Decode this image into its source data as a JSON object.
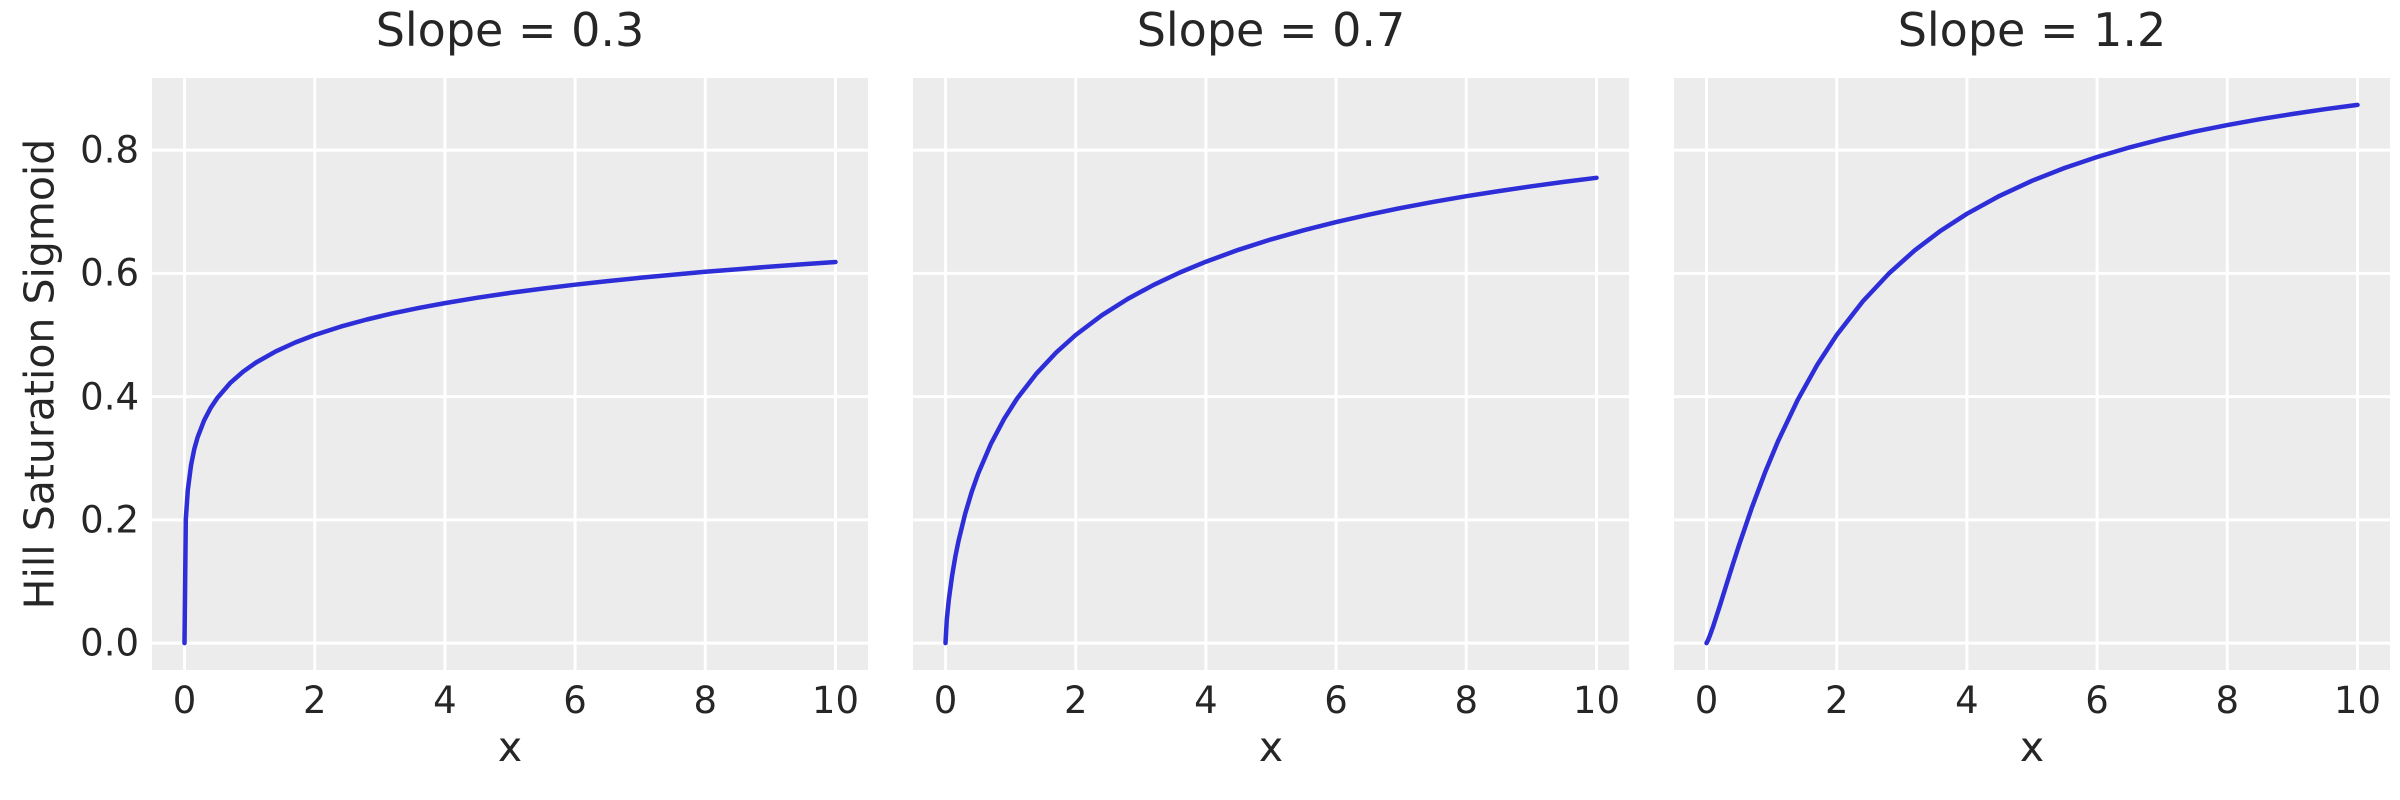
{
  "figure": {
    "background": "#ffffff",
    "axes_background": "#ececec",
    "grid_color": "#ffffff",
    "text_color": "#262626",
    "ylabel": "Hill Saturation Sigmoid"
  },
  "chart_data": [
    {
      "type": "line",
      "title": "Slope = 0.3",
      "xlabel": "x",
      "ylabel": "Hill Saturation Sigmoid",
      "line_color": "#2e2ed8",
      "grid": true,
      "legend": null,
      "xlim": [
        -0.5,
        10.5
      ],
      "ylim": [
        -0.0437,
        0.9171
      ],
      "xticks": [
        0,
        2,
        4,
        6,
        8,
        10
      ],
      "xtick_labels": [
        "0",
        "2",
        "4",
        "6",
        "8",
        "10"
      ],
      "yticks": [
        0,
        0.2,
        0.4,
        0.6,
        0.8
      ],
      "ytick_labels": [
        "0.0",
        "0.2",
        "0.4",
        "0.6",
        "0.8"
      ],
      "show_ytick_labels": true,
      "x": [
        0,
        0.02,
        0.05,
        0.1,
        0.15,
        0.2,
        0.3,
        0.4,
        0.5,
        0.7,
        0.9,
        1.1,
        1.4,
        1.7,
        2,
        2.4,
        2.8,
        3.2,
        3.6,
        4,
        4.5,
        5,
        5.5,
        6,
        6.5,
        7,
        7.5,
        8,
        8.5,
        9,
        9.5,
        10
      ],
      "y": [
        0,
        0.2007,
        0.2485,
        0.2893,
        0.3149,
        0.3339,
        0.3614,
        0.3816,
        0.3975,
        0.4219,
        0.4404,
        0.4553,
        0.4733,
        0.4878,
        0.5,
        0.5137,
        0.5252,
        0.5352,
        0.544,
        0.5518,
        0.5605,
        0.5683,
        0.5753,
        0.5817,
        0.5875,
        0.5929,
        0.5979,
        0.6025,
        0.6068,
        0.611,
        0.6148,
        0.6184
      ]
    },
    {
      "type": "line",
      "title": "Slope = 0.7",
      "xlabel": "x",
      "ylabel": "",
      "line_color": "#2e2ed8",
      "grid": true,
      "legend": null,
      "xlim": [
        -0.5,
        10.5
      ],
      "ylim": [
        -0.0437,
        0.9171
      ],
      "xticks": [
        0,
        2,
        4,
        6,
        8,
        10
      ],
      "xtick_labels": [
        "0",
        "2",
        "4",
        "6",
        "8",
        "10"
      ],
      "yticks": [
        0,
        0.2,
        0.4,
        0.6,
        0.8
      ],
      "ytick_labels": [
        "0.0",
        "0.2",
        "0.4",
        "0.6",
        "0.8"
      ],
      "show_ytick_labels": false,
      "x": [
        0,
        0.02,
        0.05,
        0.1,
        0.15,
        0.2,
        0.3,
        0.4,
        0.5,
        0.7,
        0.9,
        1.1,
        1.4,
        1.7,
        2,
        2.4,
        2.8,
        3.2,
        3.6,
        4,
        4.5,
        5,
        5.5,
        6,
        6.5,
        7,
        7.5,
        8,
        8.5,
        9,
        9.5,
        10
      ],
      "y": [
        0,
        0.0383,
        0.0703,
        0.1094,
        0.1402,
        0.1663,
        0.2095,
        0.2448,
        0.2748,
        0.3241,
        0.3638,
        0.3969,
        0.4379,
        0.4716,
        0.5,
        0.5319,
        0.5586,
        0.5815,
        0.6014,
        0.619,
        0.6382,
        0.6551,
        0.67,
        0.6833,
        0.6953,
        0.7062,
        0.7161,
        0.7252,
        0.7336,
        0.7413,
        0.7485,
        0.7552
      ]
    },
    {
      "type": "line",
      "title": "Slope = 1.2",
      "xlabel": "x",
      "ylabel": "",
      "line_color": "#2e2ed8",
      "grid": true,
      "legend": null,
      "xlim": [
        -0.5,
        10.5
      ],
      "ylim": [
        -0.0437,
        0.9171
      ],
      "xticks": [
        0,
        2,
        4,
        6,
        8,
        10
      ],
      "xtick_labels": [
        "0",
        "2",
        "4",
        "6",
        "8",
        "10"
      ],
      "yticks": [
        0,
        0.2,
        0.4,
        0.6,
        0.8
      ],
      "ytick_labels": [
        "0.0",
        "0.2",
        "0.4",
        "0.6",
        "0.8"
      ],
      "show_ytick_labels": false,
      "x": [
        0,
        0.02,
        0.05,
        0.1,
        0.15,
        0.2,
        0.3,
        0.4,
        0.5,
        0.7,
        0.9,
        1.1,
        1.4,
        1.7,
        2,
        2.4,
        2.8,
        3.2,
        3.6,
        4,
        4.5,
        5,
        5.5,
        6,
        6.5,
        7,
        7.5,
        8,
        8.5,
        9,
        9.5,
        10
      ],
      "y": [
        0,
        0.004,
        0.0118,
        0.0267,
        0.0428,
        0.0593,
        0.0931,
        0.1266,
        0.1593,
        0.221,
        0.2772,
        0.328,
        0.3946,
        0.4514,
        0.5,
        0.5545,
        0.5996,
        0.6374,
        0.6694,
        0.6967,
        0.7258,
        0.7502,
        0.771,
        0.7889,
        0.8044,
        0.8181,
        0.8301,
        0.8407,
        0.8502,
        0.8587,
        0.8664,
        0.8734
      ]
    }
  ]
}
